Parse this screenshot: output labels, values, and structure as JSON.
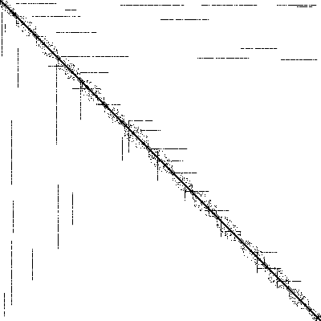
{
  "matrix": {
    "kind": "sparsity-pattern",
    "size": 400,
    "colors": {
      "background": "#ffffff",
      "nonzero": "#000000"
    },
    "diagonal": {
      "dense": true
    },
    "blocks": [
      [
        0,
        20
      ],
      [
        20,
        45
      ],
      [
        45,
        72
      ],
      [
        72,
        100
      ],
      [
        100,
        130
      ],
      [
        130,
        155
      ],
      [
        155,
        185
      ],
      [
        185,
        215
      ],
      [
        215,
        240
      ],
      [
        240,
        270
      ],
      [
        270,
        300
      ],
      [
        300,
        330
      ],
      [
        330,
        360
      ],
      [
        360,
        385
      ],
      [
        385,
        400
      ]
    ],
    "row_segments": [
      {
        "row": 4,
        "start": 20,
        "end": 70
      },
      {
        "row": 6,
        "start": 150,
        "end": 230
      },
      {
        "row": 6,
        "start": 250,
        "end": 320
      },
      {
        "row": 6,
        "start": 345,
        "end": 395
      },
      {
        "row": 8,
        "start": 370,
        "end": 390
      },
      {
        "row": 12,
        "start": 80,
        "end": 95
      },
      {
        "row": 20,
        "start": 40,
        "end": 100
      },
      {
        "row": 24,
        "start": 200,
        "end": 260
      },
      {
        "row": 40,
        "start": 70,
        "end": 120
      },
      {
        "row": 60,
        "start": 300,
        "end": 345
      },
      {
        "row": 70,
        "start": 75,
        "end": 160
      },
      {
        "row": 72,
        "start": 245,
        "end": 310
      },
      {
        "row": 74,
        "start": 350,
        "end": 395
      },
      {
        "row": 82,
        "start": 60,
        "end": 80
      },
      {
        "row": 90,
        "start": 100,
        "end": 135
      },
      {
        "row": 110,
        "start": 90,
        "end": 125
      },
      {
        "row": 130,
        "start": 120,
        "end": 150
      },
      {
        "row": 150,
        "start": 160,
        "end": 190
      },
      {
        "row": 162,
        "start": 175,
        "end": 200
      },
      {
        "row": 185,
        "start": 190,
        "end": 235
      },
      {
        "row": 200,
        "start": 195,
        "end": 230
      },
      {
        "row": 215,
        "start": 210,
        "end": 245
      },
      {
        "row": 238,
        "start": 230,
        "end": 260
      },
      {
        "row": 262,
        "start": 255,
        "end": 285
      },
      {
        "row": 288,
        "start": 280,
        "end": 300
      },
      {
        "row": 314,
        "start": 315,
        "end": 345
      },
      {
        "row": 334,
        "start": 320,
        "end": 350
      },
      {
        "row": 350,
        "start": 340,
        "end": 375
      }
    ],
    "col_segments": [
      {
        "col": 2,
        "start": 15,
        "end": 70
      },
      {
        "col": 6,
        "start": 30,
        "end": 40
      },
      {
        "col": 14,
        "start": 150,
        "end": 230
      },
      {
        "col": 14,
        "start": 300,
        "end": 380
      },
      {
        "col": 16,
        "start": 250,
        "end": 290
      },
      {
        "col": 22,
        "start": 60,
        "end": 110
      },
      {
        "col": 40,
        "start": 310,
        "end": 350
      },
      {
        "col": 70,
        "start": 80,
        "end": 180
      },
      {
        "col": 72,
        "start": 230,
        "end": 310
      },
      {
        "col": 90,
        "start": 240,
        "end": 280
      },
      {
        "col": 100,
        "start": 100,
        "end": 150
      },
      {
        "col": 152,
        "start": 170,
        "end": 200
      },
      {
        "col": 160,
        "start": 150,
        "end": 190
      },
      {
        "col": 196,
        "start": 190,
        "end": 225
      },
      {
        "col": 230,
        "start": 230,
        "end": 250
      },
      {
        "col": 260,
        "start": 250,
        "end": 270
      },
      {
        "col": 275,
        "start": 270,
        "end": 295
      },
      {
        "col": 320,
        "start": 310,
        "end": 340
      },
      {
        "col": 345,
        "start": 335,
        "end": 360
      },
      {
        "col": 5,
        "start": 365,
        "end": 395
      }
    ]
  }
}
